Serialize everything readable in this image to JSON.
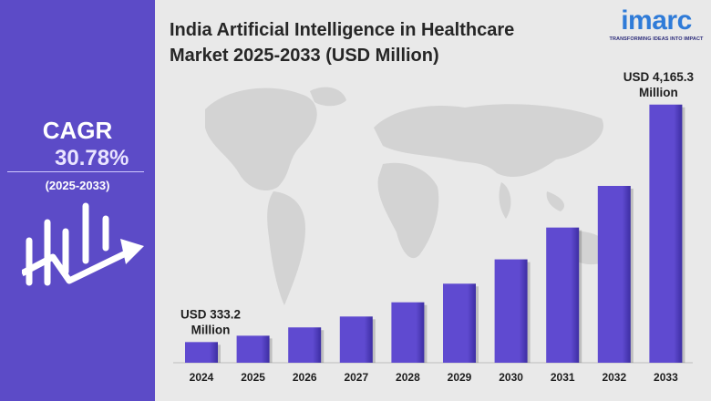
{
  "title_line1": "India Artificial Intelligence in Healthcare",
  "title_line2": "Market 2025-2033 (USD Million)",
  "logo": {
    "word": "imarc",
    "tagline": "TRANSFORMING IDEAS INTO IMPACT"
  },
  "cagr": {
    "label": "CAGR",
    "value": "30.78%",
    "period": "(2025-2033)"
  },
  "colors": {
    "panel": "#5c4bc7",
    "bar": "#5f4ad0",
    "bar_dark": "#3d2ea3",
    "logo": "#2f7bd8"
  },
  "chart_data": {
    "type": "bar",
    "categories": [
      "2024",
      "2025",
      "2026",
      "2027",
      "2028",
      "2029",
      "2030",
      "2031",
      "2032",
      "2033"
    ],
    "values": [
      333.2,
      435.8,
      570.0,
      745.5,
      975.0,
      1275.2,
      1667.9,
      2181.4,
      2852.9,
      4165.3
    ],
    "annotations": [
      {
        "category": "2024",
        "line1": "USD 333.2",
        "line2": "Million"
      },
      {
        "category": "2033",
        "line1": "USD 4,165.3",
        "line2": "Million"
      }
    ],
    "ylim": [
      0,
      4500
    ],
    "grid": false,
    "legend": "none"
  }
}
